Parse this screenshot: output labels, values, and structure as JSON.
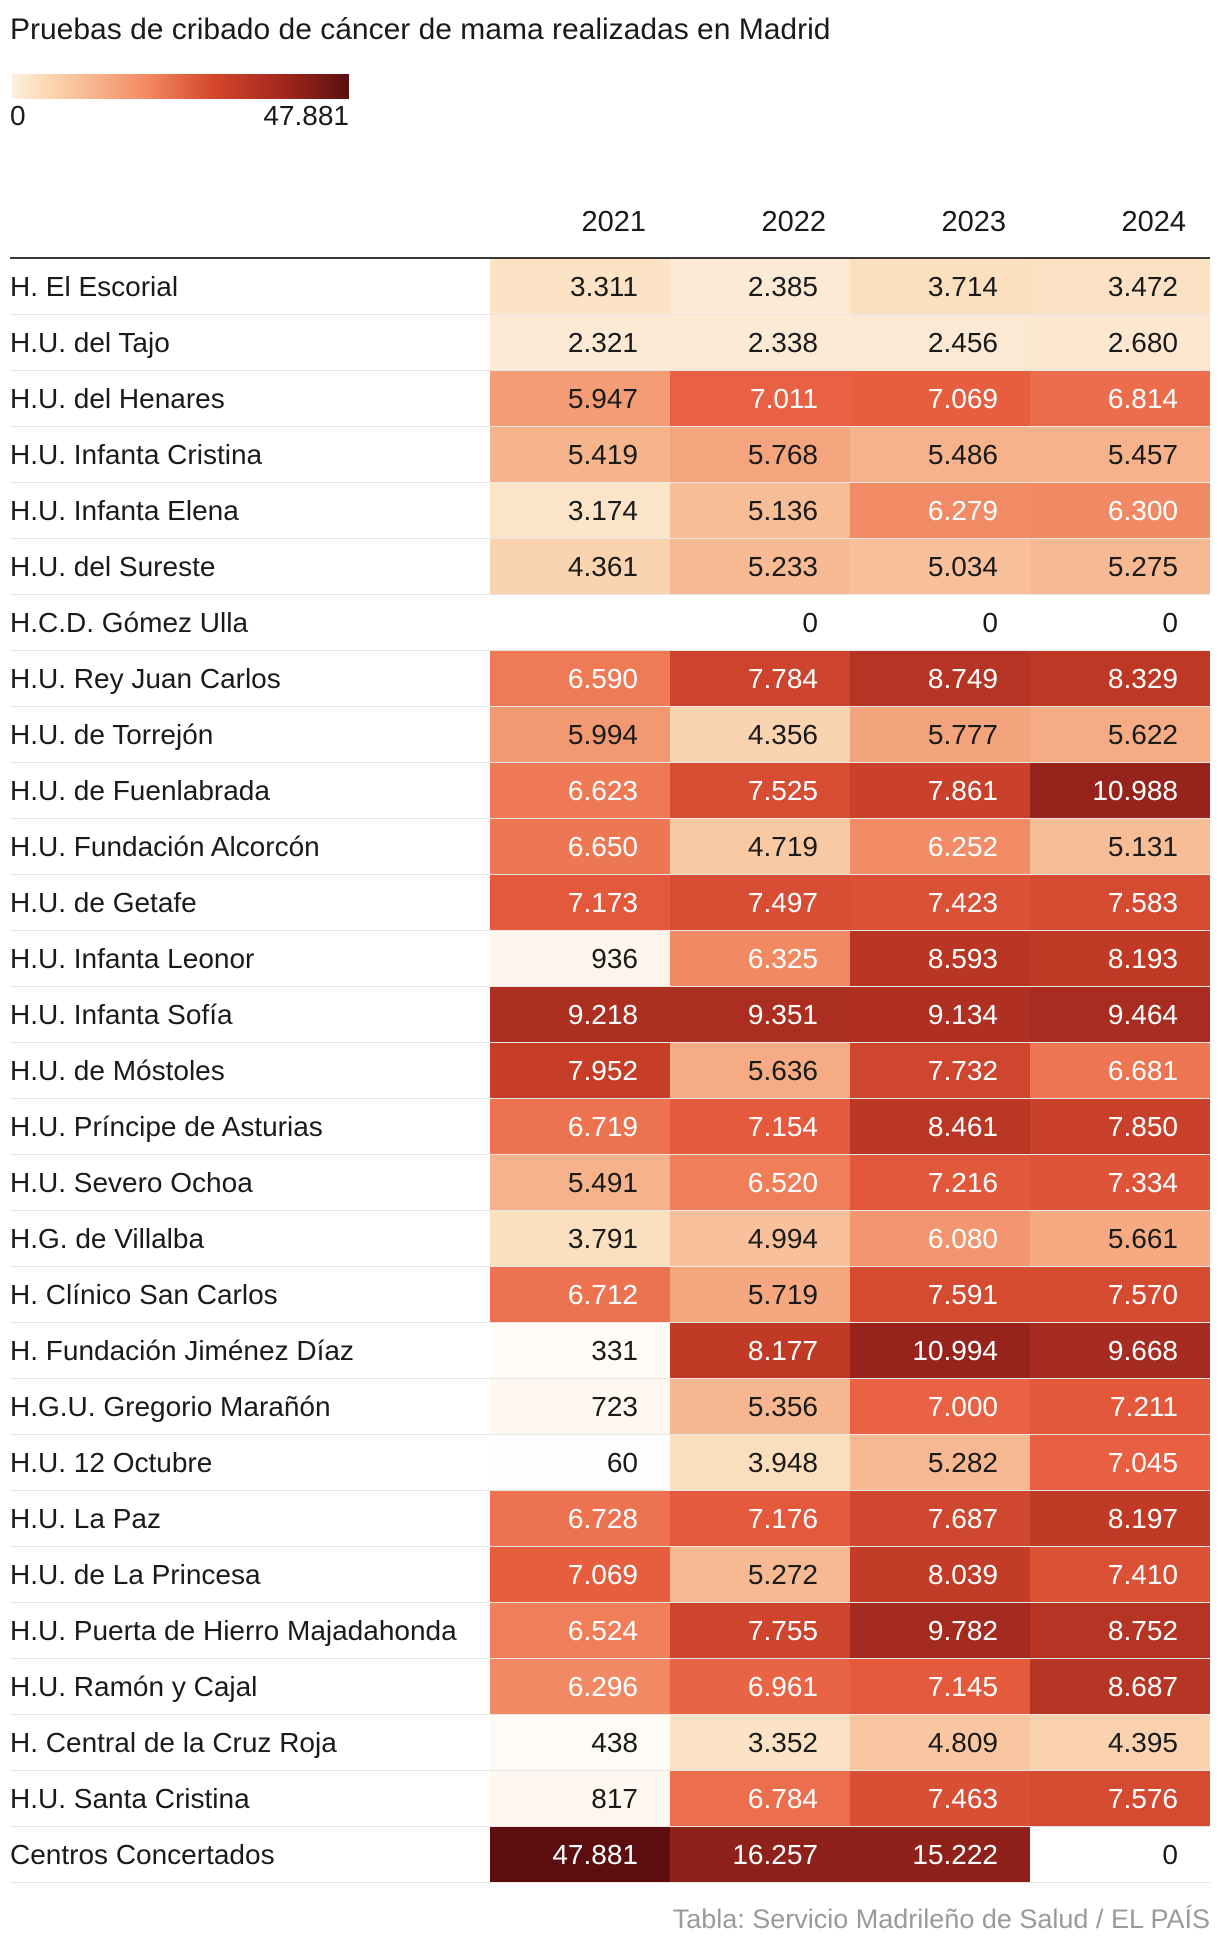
{
  "title": "Pruebas de cribado de cáncer de mama realizadas en Madrid",
  "legend": {
    "min_label": "0",
    "max_label": "47.881",
    "min": 0,
    "max": 47881
  },
  "source": "Tabla: Servicio Madrileño de Salud / EL PAÍS",
  "chart_data": {
    "type": "heatmap",
    "title": "Pruebas de cribado de cáncer de mama realizadas en Madrid",
    "columns": [
      "2021",
      "2022",
      "2023",
      "2024"
    ],
    "rows": [
      {
        "name": "H. El Escorial",
        "values": [
          3311,
          2385,
          3714,
          3472
        ]
      },
      {
        "name": "H.U. del Tajo",
        "values": [
          2321,
          2338,
          2456,
          2680
        ]
      },
      {
        "name": "H.U. del Henares",
        "values": [
          5947,
          7011,
          7069,
          6814
        ]
      },
      {
        "name": "H.U. Infanta Cristina",
        "values": [
          5419,
          5768,
          5486,
          5457
        ]
      },
      {
        "name": "H.U. Infanta Elena",
        "values": [
          3174,
          5136,
          6279,
          6300
        ]
      },
      {
        "name": "H.U. del Sureste",
        "values": [
          4361,
          5233,
          5034,
          5275
        ]
      },
      {
        "name": "H.C.D. Gómez Ulla",
        "values": [
          null,
          0,
          0,
          0
        ]
      },
      {
        "name": "H.U. Rey Juan Carlos",
        "values": [
          6590,
          7784,
          8749,
          8329
        ]
      },
      {
        "name": "H.U. de Torrejón",
        "values": [
          5994,
          4356,
          5777,
          5622
        ]
      },
      {
        "name": "H.U. de Fuenlabrada",
        "values": [
          6623,
          7525,
          7861,
          10988
        ]
      },
      {
        "name": "H.U. Fundación Alcorcón",
        "values": [
          6650,
          4719,
          6252,
          5131
        ]
      },
      {
        "name": "H.U. de Getafe",
        "values": [
          7173,
          7497,
          7423,
          7583
        ]
      },
      {
        "name": "H.U. Infanta Leonor",
        "values": [
          936,
          6325,
          8593,
          8193
        ]
      },
      {
        "name": "H.U. Infanta Sofía",
        "values": [
          9218,
          9351,
          9134,
          9464
        ]
      },
      {
        "name": "H.U. de Móstoles",
        "values": [
          7952,
          5636,
          7732,
          6681
        ]
      },
      {
        "name": "H.U. Príncipe de Asturias",
        "values": [
          6719,
          7154,
          8461,
          7850
        ]
      },
      {
        "name": "H.U. Severo Ochoa",
        "values": [
          5491,
          6520,
          7216,
          7334
        ]
      },
      {
        "name": "H.G. de Villalba",
        "values": [
          3791,
          4994,
          6080,
          5661
        ]
      },
      {
        "name": "H. Clínico San Carlos",
        "values": [
          6712,
          5719,
          7591,
          7570
        ]
      },
      {
        "name": "H. Fundación Jiménez Díaz",
        "values": [
          331,
          8177,
          10994,
          9668
        ]
      },
      {
        "name": "H.G.U. Gregorio Marañón",
        "values": [
          723,
          5356,
          7000,
          7211
        ]
      },
      {
        "name": "H.U. 12 Octubre",
        "values": [
          60,
          3948,
          5282,
          7045
        ]
      },
      {
        "name": "H.U. La Paz",
        "values": [
          6728,
          7176,
          7687,
          8197
        ]
      },
      {
        "name": "H.U. de La Princesa",
        "values": [
          7069,
          5272,
          8039,
          7410
        ]
      },
      {
        "name": "H.U. Puerta de Hierro Majadahonda",
        "values": [
          6524,
          7755,
          9782,
          8752
        ]
      },
      {
        "name": "H.U. Ramón y Cajal",
        "values": [
          6296,
          6961,
          7145,
          8687
        ]
      },
      {
        "name": "H. Central de la Cruz Roja",
        "values": [
          438,
          3352,
          4809,
          4395
        ]
      },
      {
        "name": "H.U. Santa Cristina",
        "values": [
          817,
          6784,
          7463,
          7576
        ]
      },
      {
        "name": "Centros Concertados",
        "values": [
          47881,
          16257,
          15222,
          0
        ]
      }
    ]
  }
}
